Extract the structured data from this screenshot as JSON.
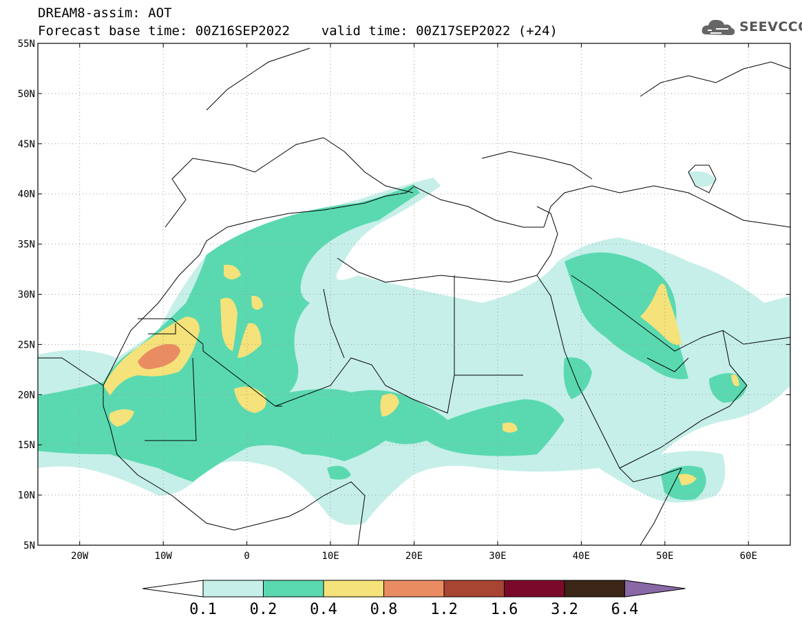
{
  "header": {
    "line1": "DREAM8-assim: AOT",
    "line2": "Forecast base time: 00Z16SEP2022    valid time: 00Z17SEP2022 (+24)"
  },
  "logo": {
    "text": "SEEVCCC",
    "icon": "cloud-icon"
  },
  "map": {
    "lon_range": [
      -25,
      65
    ],
    "lat_range": [
      5,
      55
    ],
    "lat_ticks": [
      "55N",
      "50N",
      "45N",
      "40N",
      "35N",
      "30N",
      "25N",
      "20N",
      "15N",
      "10N",
      "5N"
    ],
    "lon_ticks": [
      "20W",
      "10W",
      "0",
      "10E",
      "20E",
      "30E",
      "40E",
      "50E",
      "60E"
    ]
  },
  "colorbar": {
    "labels": [
      "0.1",
      "0.2",
      "0.4",
      "0.8",
      "1.2",
      "1.6",
      "3.2",
      "6.4"
    ],
    "colors": [
      "#c6efe9",
      "#5ad9b0",
      "#f5e27a",
      "#e98c62",
      "#a84432",
      "#7b0a2a",
      "#3a2516",
      "#8a68a6"
    ]
  },
  "layers": {
    "level_0_1": "#c6efe9",
    "level_0_2": "#5ad9b0",
    "level_0_4": "#f5e27a",
    "level_0_8": "#e98c62"
  }
}
